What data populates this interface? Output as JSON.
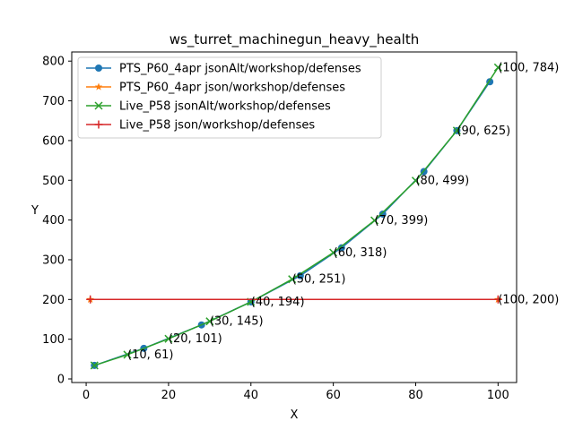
{
  "chart_data": {
    "type": "line",
    "title": "ws_turret_machinegun_heavy_health",
    "xlabel": "X",
    "ylabel": "Y",
    "xlim": [
      -3.5,
      104.5
    ],
    "ylim": [
      -9,
      823
    ],
    "xticks": [
      "0",
      "20",
      "40",
      "60",
      "80",
      "100"
    ],
    "yticks": [
      "0",
      "100",
      "200",
      "300",
      "400",
      "500",
      "600",
      "700",
      "800"
    ],
    "grid": false,
    "legend_position": "top-left",
    "series": [
      {
        "name": "PTS_P60_4apr jsonAlt/workshop/defenses",
        "color": "#1f77b4",
        "marker": "circle",
        "x": [
          2,
          14,
          28,
          40,
          52,
          62,
          72,
          82,
          90,
          98
        ],
        "y": [
          34,
          77,
          136,
          194,
          260,
          330,
          415,
          522,
          625,
          748
        ]
      },
      {
        "name": "PTS_P60_4apr json/workshop/defenses",
        "color": "#ff7f0e",
        "marker": "star",
        "x": [
          1,
          100
        ],
        "y": [
          200,
          200
        ]
      },
      {
        "name": "Live_P58 jsonAlt/workshop/defenses",
        "color": "#2ca02c",
        "marker": "x",
        "x": [
          2,
          10,
          20,
          30,
          40,
          50,
          60,
          70,
          80,
          90,
          100
        ],
        "y": [
          34,
          61,
          101,
          145,
          194,
          251,
          318,
          399,
          499,
          625,
          784
        ]
      },
      {
        "name": "Live_P58 json/workshop/defenses",
        "color": "#d62728",
        "marker": "plus",
        "x": [
          1,
          100
        ],
        "y": [
          200,
          200
        ]
      }
    ],
    "annotations": [
      {
        "text": "(10, 61)",
        "x": 10,
        "y": 61
      },
      {
        "text": "(20, 101)",
        "x": 20,
        "y": 101
      },
      {
        "text": "(30, 145)",
        "x": 30,
        "y": 145
      },
      {
        "text": "(40, 194)",
        "x": 40,
        "y": 194
      },
      {
        "text": "(50, 251)",
        "x": 50,
        "y": 251
      },
      {
        "text": "(60, 318)",
        "x": 60,
        "y": 318
      },
      {
        "text": "(70, 399)",
        "x": 70,
        "y": 399
      },
      {
        "text": "(80, 499)",
        "x": 80,
        "y": 499
      },
      {
        "text": "(90, 625)",
        "x": 90,
        "y": 625
      },
      {
        "text": "(100, 784)",
        "x": 100,
        "y": 784
      },
      {
        "text": "(100, 200)",
        "x": 100,
        "y": 200
      }
    ]
  }
}
